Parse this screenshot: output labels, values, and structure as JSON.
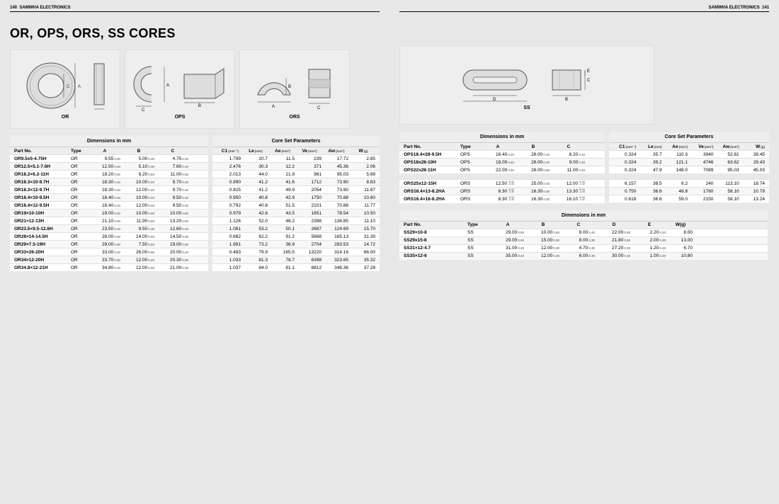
{
  "header": {
    "left_page": "140",
    "brand": "SAMWHA ELECTRONICS",
    "right_page": "141"
  },
  "title": "OR, OPS, ORS, SS CORES",
  "diagram_labels": {
    "or": "OR",
    "ops": "OPS",
    "ors": "ORS",
    "ss": "SS"
  },
  "captions": {
    "dim": "Dimensions in mm",
    "param": "Core Set Parameters"
  },
  "dim_headers": [
    "Part No.",
    "Type",
    "A",
    "B",
    "C"
  ],
  "param_headers": [
    "C1(mm⁻¹)",
    "Le(mm)",
    "Ae(mm²)",
    "Ve(mm³)",
    "Aw(mm²)",
    "W(g)"
  ],
  "ss_headers": [
    "Part No.",
    "Type",
    "A",
    "B",
    "C",
    "D",
    "E",
    "W(g)"
  ],
  "or_rows": [
    {
      "part": "OR9.5x5-4.75H",
      "type": "OR",
      "a": "9.55",
      "at": "0.30",
      "b": "5.00",
      "bt": "0.30",
      "c": "4.75",
      "ct": "0.25",
      "c1": "1.799",
      "le": "20.7",
      "ae": "11.5",
      "ve": "239",
      "aw": "17.72",
      "w": "2.85"
    },
    {
      "part": "OR12.5×5.1-7.6H",
      "type": "OR",
      "a": "12.50",
      "at": "0.40",
      "b": "5.10",
      "bt": "0.30",
      "c": "7.60",
      "ct": "0.40",
      "c1": "2.476",
      "le": "30.3",
      "ae": "12.2",
      "ve": "371",
      "aw": "45.36",
      "w": "2.06"
    },
    {
      "part": "OR18.2×6.2-11H",
      "type": "OR",
      "a": "18.20",
      "at": "0.50",
      "b": "6.20",
      "bt": "0.50",
      "c": "11.00",
      "ct": "0.50",
      "c1": "2.013",
      "le": "44.0",
      "ae": "21.9",
      "ve": "961",
      "aw": "95.03",
      "w": "5.69"
    },
    {
      "part": "OR18.3×10-9.7H",
      "type": "OR",
      "a": "18.30",
      "at": "0.40",
      "b": "10.00",
      "bt": "0.40",
      "c": "9.70",
      "ct": "0.40",
      "c1": "0.990",
      "le": "41.2",
      "ae": "41.6",
      "ve": "1712",
      "aw": "73.90",
      "w": "8.83"
    },
    {
      "part": "OR18.3×12-9.7H",
      "type": "OR",
      "a": "18.30",
      "at": "0.40",
      "b": "12.00",
      "bt": "0.40",
      "c": "9.70",
      "ct": "0.40",
      "c1": "0.825",
      "le": "41.2",
      "ae": "49.9",
      "ve": "2054",
      "aw": "73.90",
      "w": "11.87"
    },
    {
      "part": "OR18.4×10-9.5H",
      "type": "OR",
      "a": "18.40",
      "at": "0.40",
      "b": "10.00",
      "bt": "0.40",
      "c": "9.50",
      "ct": "0.40",
      "c1": "0.950",
      "le": "40.8",
      "ae": "42.9",
      "ve": "1750",
      "aw": "70.88",
      "w": "10.60"
    },
    {
      "part": "OR18.4×12-9.5H",
      "type": "OR",
      "a": "18.40",
      "at": "0.40",
      "b": "12.00",
      "bt": "0.40",
      "c": "9.50",
      "ct": "0.40",
      "c1": "0.792",
      "le": "40.8",
      "ae": "51.5",
      "ve": "2101",
      "aw": "70.88",
      "w": "11.77"
    },
    {
      "part": "OR19×10-10H",
      "type": "OR",
      "a": "19.00",
      "at": "0.50",
      "b": "10.00",
      "bt": "0.50",
      "c": "10.00",
      "ct": "0.50",
      "c1": "0.979",
      "le": "42.6",
      "ae": "43.5",
      "ve": "1851",
      "aw": "78.54",
      "w": "10.50"
    },
    {
      "part": "OR21×12-13H",
      "type": "OR",
      "a": "21.10",
      "at": "0.50",
      "b": "11.90",
      "bt": "0.50",
      "c": "13.20",
      "ct": "0.50",
      "c1": "1.126",
      "le": "52.0",
      "ae": "46.2",
      "ve": "2398",
      "aw": "136.85",
      "w": "11.10"
    },
    {
      "part": "OR23.5×9.5-12.6H",
      "type": "OR",
      "a": "23.50",
      "at": "0.40",
      "b": "9.50",
      "bt": "0.30",
      "c": "12.60",
      "ct": "0.40",
      "c1": "1.061",
      "le": "53.2",
      "ae": "50.1",
      "ve": "2667",
      "aw": "124.69",
      "w": "15.70"
    },
    {
      "part": "OR28×14-14.5H",
      "type": "OR",
      "a": "28.00",
      "at": "0.50",
      "b": "14.00",
      "bt": "0.50",
      "c": "14.50",
      "ct": "0.50",
      "c1": "0.682",
      "le": "62.2",
      "ae": "91.2",
      "ve": "5668",
      "aw": "165.13",
      "w": "31.39"
    },
    {
      "part": "OR29×7.5-19H",
      "type": "OR",
      "a": "29.00",
      "at": "0.50",
      "b": "7.50",
      "bt": "0.50",
      "c": "19.00",
      "ct": "0.50",
      "c1": "1.981",
      "le": "73.2",
      "ae": "36.9",
      "ve": "2704",
      "aw": "283.53",
      "w": "14.72"
    },
    {
      "part": "OR33×26-20H",
      "type": "OR",
      "a": "33.00",
      "at": "0.40",
      "b": "26.00",
      "bt": "0.50",
      "c": "20.00",
      "ct": "0.40",
      "c1": "0.483",
      "le": "79.9",
      "ae": "165.5",
      "ve": "13220",
      "aw": "314.16",
      "w": "66.00"
    },
    {
      "part": "OR34×12-20H",
      "type": "OR",
      "a": "33.70",
      "at": "0.50",
      "b": "12.00",
      "bt": "0.40",
      "c": "20.30",
      "ct": "0.50",
      "c1": "1.033",
      "le": "81.3",
      "ae": "78.7",
      "ve": "6398",
      "aw": "323.65",
      "w": "35.32"
    },
    {
      "part": "OR34.8×12-21H",
      "type": "OR",
      "a": "34.80",
      "at": "0.40",
      "b": "12.00",
      "bt": "0.50",
      "c": "21.00",
      "ct": "0.40",
      "c1": "1.037",
      "le": "84.0",
      "ae": "81.1",
      "ve": "6812",
      "aw": "346.36",
      "w": "37.28"
    }
  ],
  "ops_rows": [
    {
      "part": "OPS18.4×28-9.5H",
      "type": "OPS",
      "a": "16.40",
      "at": "0.40",
      "b": "28.00",
      "bt": "0.40",
      "c": "8.20",
      "ct": "0.15",
      "c1": "0.324",
      "le": "35.7",
      "ae": "110.3",
      "ve": "3940",
      "aw": "52.81",
      "w": "28.45"
    },
    {
      "part": "OPS18x28-10H",
      "type": "OPS",
      "a": "18.00",
      "at": "0.40",
      "b": "28.00",
      "bt": "0.40",
      "c": "9.00",
      "ct": "0.30",
      "c1": "0.324",
      "le": "39.2",
      "ae": "121.1",
      "ve": "4746",
      "aw": "63.62",
      "w": "29.43"
    },
    {
      "part": "OPS22x28-11H",
      "type": "OPS",
      "a": "22.00",
      "at": "0.40",
      "b": "28.00",
      "bt": "0.50",
      "c": "11.00",
      "ct": "0.30",
      "c1": "0.324",
      "le": "47.9",
      "ae": "148.0",
      "ve": "7089",
      "aw": "95.03",
      "w": "45.03"
    }
  ],
  "ors_rows": [
    {
      "part": "ORS25x12-15H",
      "type": "ORS",
      "a": "12.50",
      "at_dual": "+0.20/-0.30",
      "b": "25.00",
      "bt": "0.40",
      "c": "12.00",
      "ct_dual": "+0.20/-0.40",
      "c1": "6.157",
      "le": "38.5",
      "ae": "6.2",
      "ve": "240",
      "aw": "113.10",
      "w": "18.74"
    },
    {
      "part": "ORS16.4×13-8.2HA",
      "type": "ORS",
      "a": "8.30",
      "at_dual": "+0.00/-0.30",
      "b": "16.30",
      "bt": "0.30",
      "c": "13.30",
      "ct_dual": "+0.00/-0.40",
      "c1": "0.750",
      "le": "36.6",
      "ae": "48.8",
      "ve": "1780",
      "aw": "58.10",
      "w": "10.79"
    },
    {
      "part": "ORS16.4×16-8.2HA",
      "type": "ORS",
      "a": "8.30",
      "at_dual": "+0.00/-0.30",
      "b": "16.30",
      "bt": "0.30",
      "c": "16.10",
      "ct_dual": "+0.00/-0.40",
      "c1": "0.618",
      "le": "36.6",
      "ae": "59.0",
      "ve": "2150",
      "aw": "58.10",
      "w": "13.24"
    }
  ],
  "ss_rows": [
    {
      "part": "SS29×10-8",
      "type": "SS",
      "a": "29.00",
      "at": "0.50",
      "b": "10.00",
      "bt": "0.50",
      "c": "8.00",
      "ct": "0.40",
      "d": "22.00",
      "dt": "0.50",
      "e": "2.20",
      "et": "0.20",
      "w": "8.00"
    },
    {
      "part": "SS29x15-8",
      "type": "SS",
      "a": "29.00",
      "at": "0.50",
      "b": "15.00",
      "bt": "0.30",
      "c": "8.00",
      "ct": "0.30",
      "d": "21.80",
      "dt": "0.50",
      "e": "2.00",
      "et": "0.30",
      "w": "13.00"
    },
    {
      "part": "SS31×12-4.7",
      "type": "SS",
      "a": "31.00",
      "at": "0.40",
      "b": "12.00",
      "bt": "0.30",
      "c": "4.70",
      "ct": "0.30",
      "d": "27.20",
      "dt": "0.30",
      "e": "1.20",
      "et": "0.40",
      "w": "6.70"
    },
    {
      "part": "SS35×12-6",
      "type": "SS",
      "a": "35.00",
      "at": "0.40",
      "b": "12.00",
      "bt": "0.30",
      "c": "6.00",
      "ct": "0.30",
      "d": "30.00",
      "dt": "0.30",
      "e": "1.00",
      "et": "0.20",
      "w": "10.80"
    }
  ],
  "colors": {
    "bg": "#e8e8e8",
    "box": "#eee",
    "row": "#fff",
    "altrow": "#f7f7f7",
    "stroke": "#555"
  }
}
